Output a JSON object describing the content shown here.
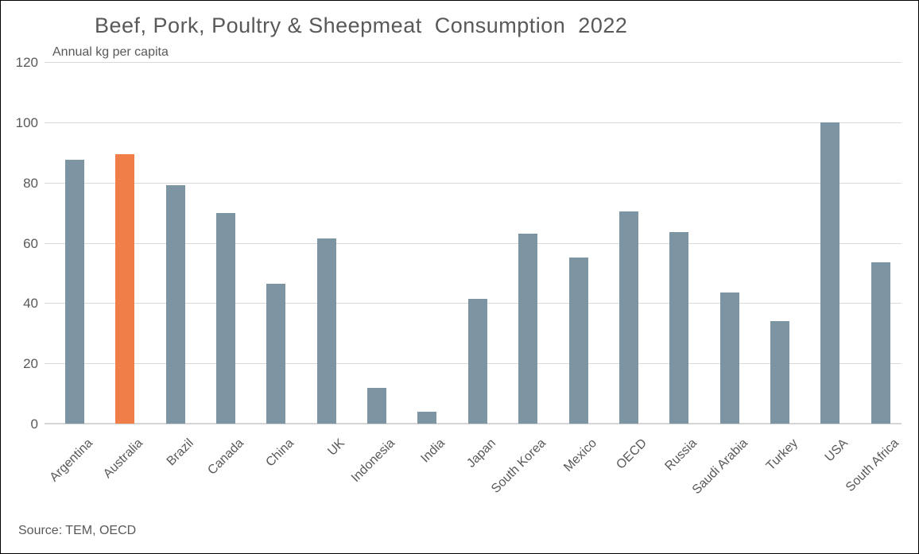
{
  "chart_data": {
    "type": "bar",
    "title": "Beef, Pork, Poultry & Sheepmeat  Consumption  2022",
    "ylabel": "Annual kg per capita",
    "source": "Source: TEM, OECD",
    "categories": [
      "Argentina",
      "Australia",
      "Brazil",
      "Canada",
      "China",
      "UK",
      "Indonesia",
      "India",
      "Japan",
      "South Korea",
      "Mexico",
      "OECD",
      "Russia",
      "Saudi Arabia",
      "Turkey",
      "USA",
      "South Africa"
    ],
    "values": [
      87.5,
      89.5,
      79,
      70,
      46.5,
      61.5,
      12,
      4,
      41.5,
      63,
      55,
      70.5,
      63.5,
      43.5,
      34,
      100,
      53.5
    ],
    "ylim": [
      0,
      120
    ],
    "yticks": [
      0,
      20,
      40,
      60,
      80,
      100,
      120
    ],
    "grid": true,
    "legend_position": "none",
    "bar_color": "#7d95a3",
    "highlight_color": "#ef7e49",
    "highlight_index": 1,
    "highlight_category": "Australia",
    "text_color": "#595959",
    "gridline_color": "#d9d9d9"
  }
}
